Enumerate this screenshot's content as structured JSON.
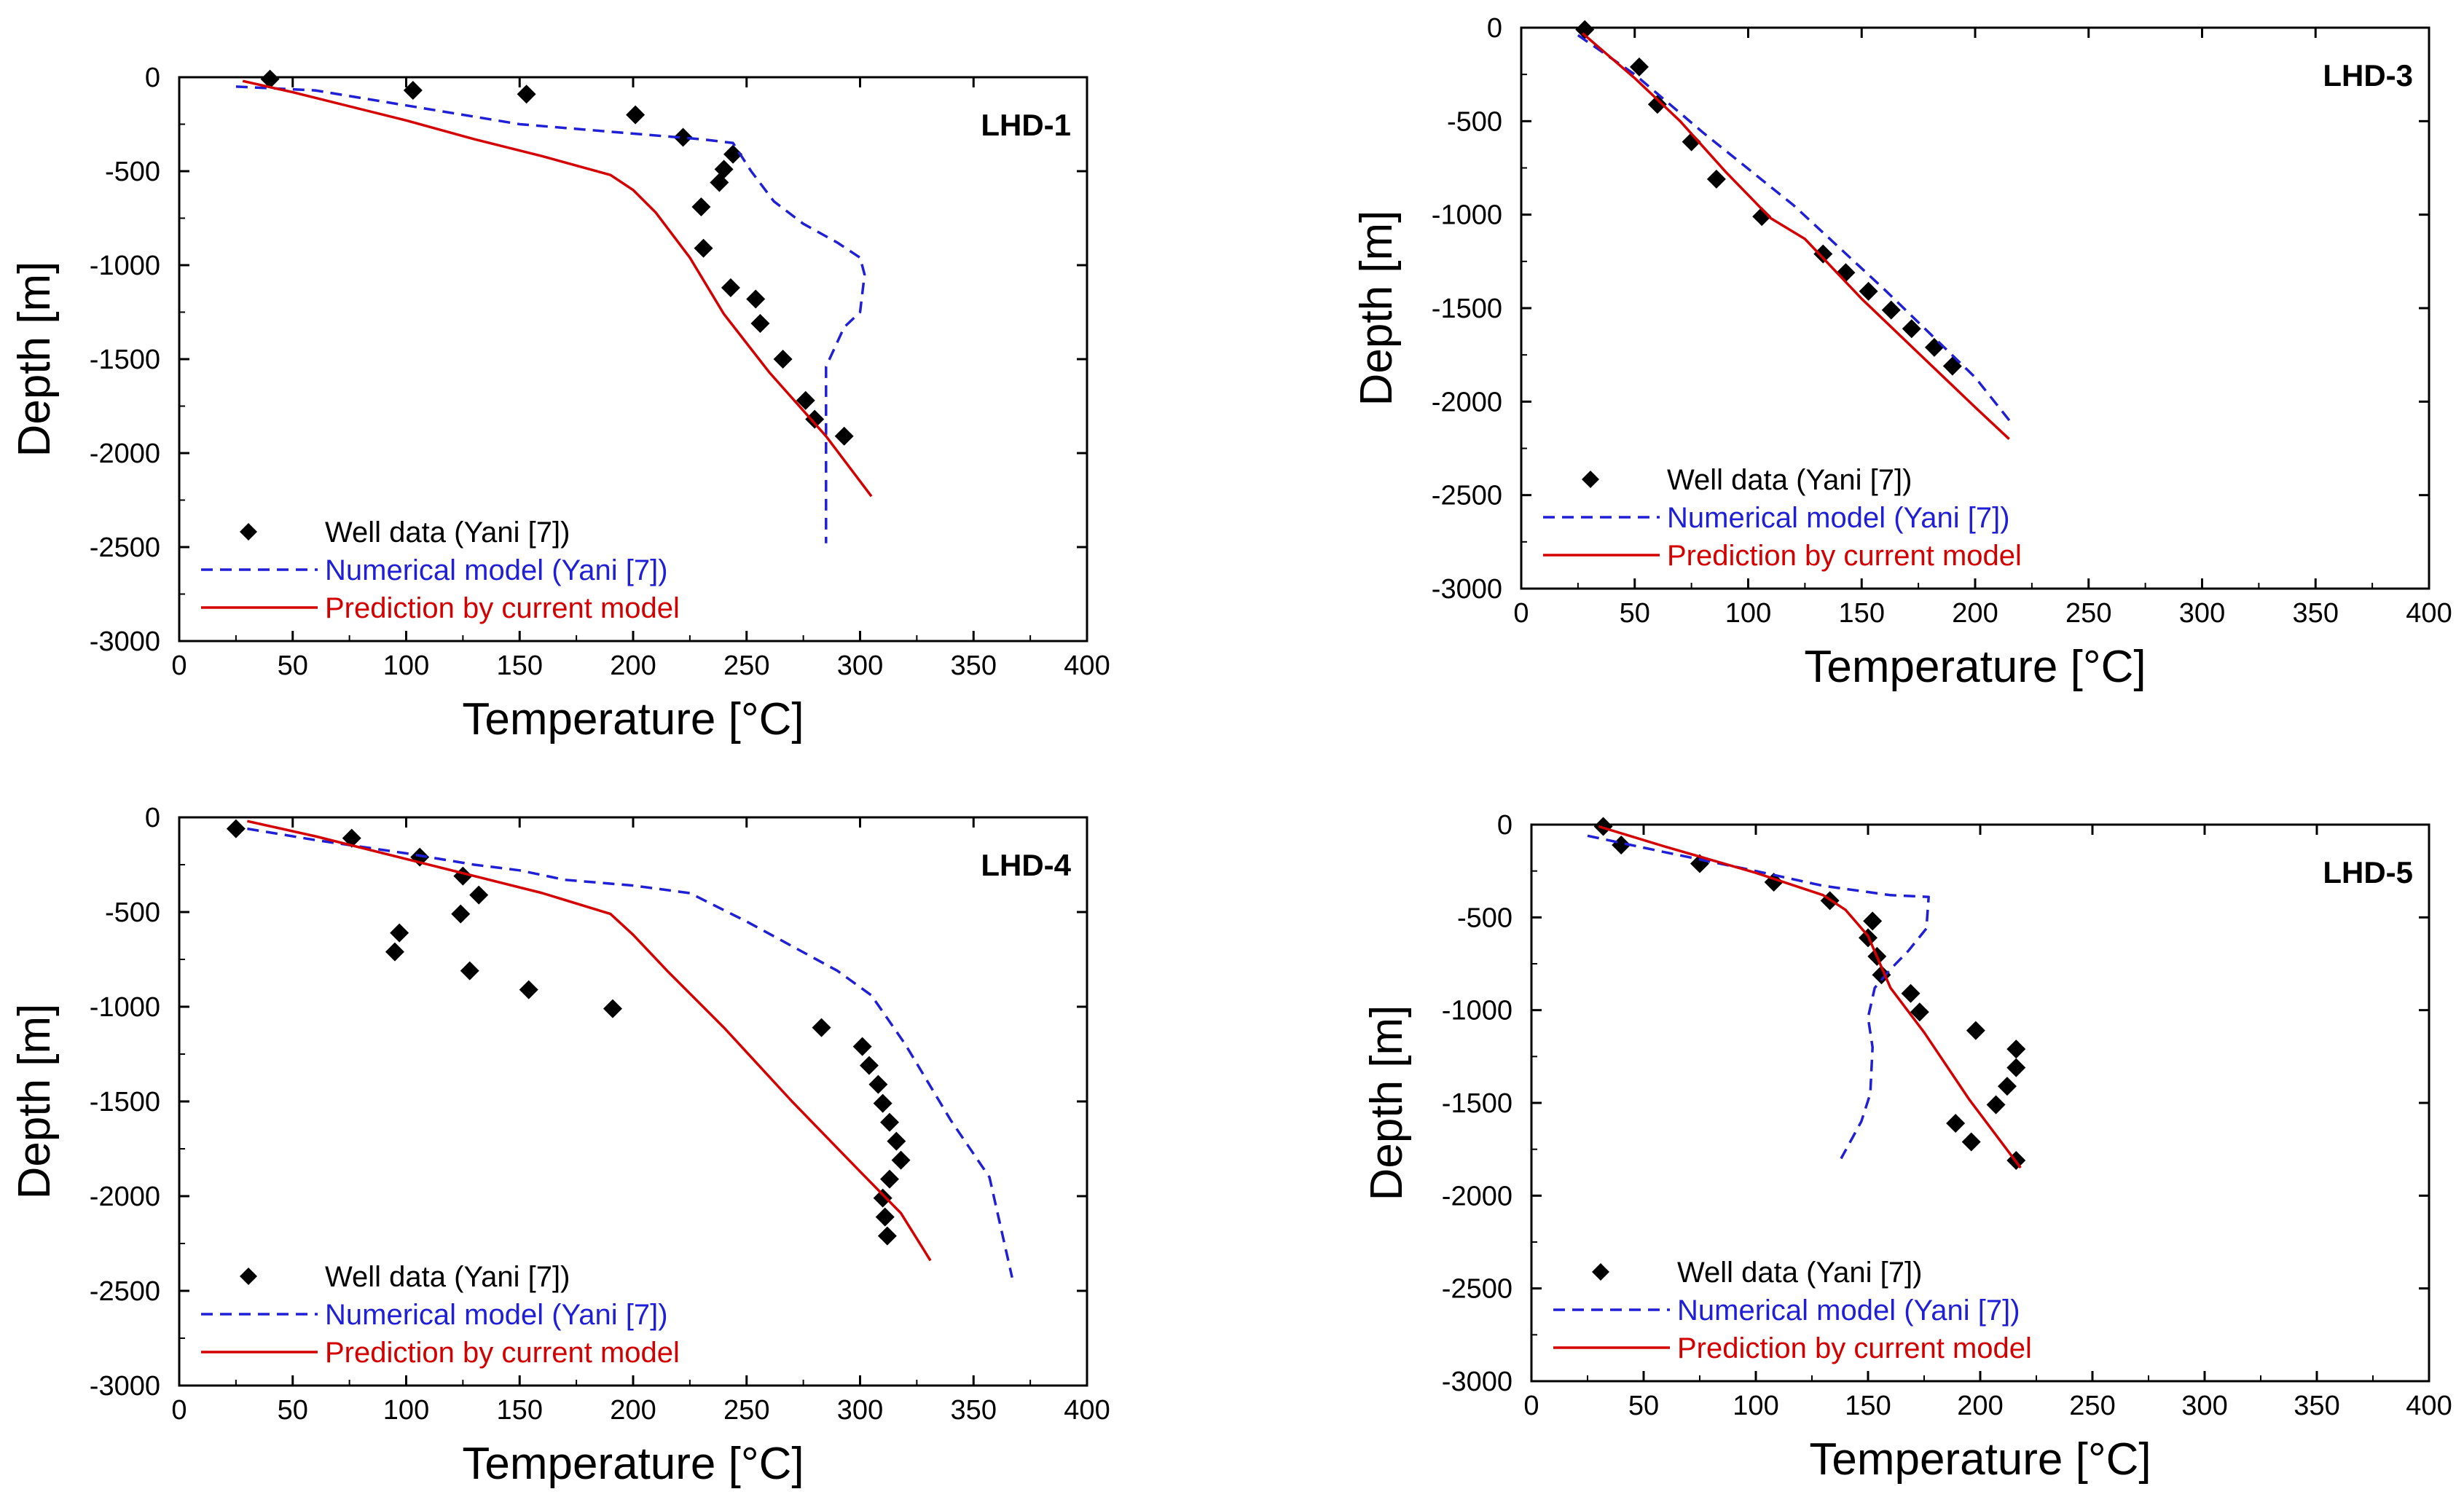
{
  "chart_data": [
    {
      "type": "scatter",
      "title": "LHD-1",
      "xlabel": "Temperature [°C]",
      "ylabel": "Depth [m]",
      "xlim": [
        0,
        400
      ],
      "ylim": [
        -3000,
        0
      ],
      "xticks": [
        "0",
        "50",
        "100",
        "150",
        "200",
        "250",
        "300",
        "350",
        "400"
      ],
      "yticks": [
        "0",
        "-500",
        "-1000",
        "-1500",
        "-2000",
        "-2500",
        "-3000"
      ],
      "legend_position": "bottom-left",
      "series": [
        {
          "name": "Well data (Yani [7])",
          "kind": "markers",
          "color": "#000000",
          "x": [
            40,
            103,
            153,
            201,
            222,
            244,
            240,
            238,
            230,
            231,
            243,
            254,
            256,
            266,
            276,
            280,
            293
          ],
          "y": [
            -10,
            -70,
            -90,
            -200,
            -320,
            -410,
            -490,
            -560,
            -690,
            -910,
            -1120,
            -1180,
            -1310,
            -1500,
            -1720,
            -1820,
            -1910
          ]
        },
        {
          "name": "Numerical model (Yani [7])",
          "kind": "dashed",
          "color": "#1f1fd6",
          "x": [
            25,
            60,
            100,
            150,
            200,
            230,
            244,
            252,
            262,
            275,
            290,
            300,
            302,
            300,
            293,
            285,
            285,
            285
          ],
          "y": [
            -50,
            -70,
            -150,
            -250,
            -300,
            -330,
            -350,
            -500,
            -660,
            -780,
            -880,
            -960,
            -1050,
            -1250,
            -1330,
            -1540,
            -2000,
            -2480
          ]
        },
        {
          "name": "Prediction by current model",
          "kind": "solid",
          "color": "#d40000",
          "x": [
            28,
            50,
            100,
            130,
            160,
            190,
            200,
            210,
            225,
            240,
            260,
            285,
            305
          ],
          "y": [
            -20,
            -80,
            -230,
            -330,
            -420,
            -520,
            -600,
            -720,
            -960,
            -1260,
            -1570,
            -1910,
            -2230
          ]
        }
      ]
    },
    {
      "type": "scatter",
      "title": "LHD-3",
      "xlabel": "Temperature [°C]",
      "ylabel": "Depth [m]",
      "xlim": [
        0,
        400
      ],
      "ylim": [
        -3000,
        0
      ],
      "xticks": [
        "0",
        "50",
        "100",
        "150",
        "200",
        "250",
        "300",
        "350",
        "400"
      ],
      "yticks": [
        "0",
        "-500",
        "-1000",
        "-1500",
        "-2000",
        "-2500",
        "-3000"
      ],
      "legend_position": "bottom-left",
      "series": [
        {
          "name": "Well data (Yani [7])",
          "kind": "markers",
          "color": "#000000",
          "x": [
            28,
            52,
            60,
            75,
            86,
            106,
            133,
            143,
            153,
            163,
            172,
            182,
            190
          ],
          "y": [
            -10,
            -210,
            -410,
            -610,
            -810,
            -1010,
            -1210,
            -1310,
            -1410,
            -1510,
            -1610,
            -1710,
            -1810
          ]
        },
        {
          "name": "Numerical model (Yani [7])",
          "kind": "dashed",
          "color": "#1f1fd6",
          "x": [
            25,
            50,
            80,
            120,
            160,
            200,
            217
          ],
          "y": [
            -40,
            -250,
            -560,
            -950,
            -1400,
            -1870,
            -2130
          ]
        },
        {
          "name": "Prediction by current model",
          "kind": "solid",
          "color": "#d40000",
          "x": [
            27,
            50,
            70,
            90,
            110,
            125,
            150,
            175,
            200,
            215
          ],
          "y": [
            -30,
            -270,
            -500,
            -770,
            -1020,
            -1130,
            -1450,
            -1740,
            -2030,
            -2200
          ]
        }
      ]
    },
    {
      "type": "scatter",
      "title": "LHD-4",
      "xlabel": "Temperature [°C]",
      "ylabel": "Depth [m]",
      "xlim": [
        0,
        400
      ],
      "ylim": [
        -3000,
        0
      ],
      "xticks": [
        "0",
        "50",
        "100",
        "150",
        "200",
        "250",
        "300",
        "350",
        "400"
      ],
      "yticks": [
        "0",
        "-500",
        "-1000",
        "-1500",
        "-2000",
        "-2500",
        "-3000"
      ],
      "legend_position": "bottom-left",
      "series": [
        {
          "name": "Well data (Yani [7])",
          "kind": "markers",
          "color": "#000000",
          "x": [
            25,
            76,
            106,
            125,
            132,
            124,
            97,
            95,
            128,
            154,
            191,
            283,
            301,
            304,
            308,
            310,
            313,
            316,
            318,
            313,
            310,
            311,
            312
          ],
          "y": [
            -60,
            -110,
            -210,
            -310,
            -410,
            -510,
            -610,
            -710,
            -810,
            -910,
            -1010,
            -1110,
            -1210,
            -1310,
            -1410,
            -1510,
            -1610,
            -1710,
            -1810,
            -1910,
            -2010,
            -2110,
            -2210
          ]
        },
        {
          "name": "Numerical model (Yani [7])",
          "kind": "dashed",
          "color": "#1f1fd6",
          "x": [
            30,
            60,
            100,
            130,
            150,
            170,
            200,
            225,
            250,
            270,
            290,
            305,
            320,
            340,
            357,
            367
          ],
          "y": [
            -60,
            -120,
            -190,
            -250,
            -280,
            -330,
            -360,
            -400,
            -550,
            -680,
            -810,
            -940,
            -1200,
            -1600,
            -1900,
            -2430
          ]
        },
        {
          "name": "Prediction by current model",
          "kind": "solid",
          "color": "#d40000",
          "x": [
            30,
            60,
            100,
            130,
            160,
            190,
            200,
            215,
            240,
            270,
            300,
            318,
            331
          ],
          "y": [
            -20,
            -100,
            -220,
            -310,
            -400,
            -510,
            -620,
            -810,
            -1110,
            -1500,
            -1870,
            -2090,
            -2340
          ]
        }
      ]
    },
    {
      "type": "scatter",
      "title": "LHD-5",
      "xlabel": "Temperature [°C]",
      "ylabel": "Depth [m]",
      "xlim": [
        0,
        400
      ],
      "ylim": [
        -3000,
        0
      ],
      "xticks": [
        "0",
        "50",
        "100",
        "150",
        "200",
        "250",
        "300",
        "350",
        "400"
      ],
      "yticks": [
        "0",
        "-500",
        "-1000",
        "-1500",
        "-2000",
        "-2500",
        "-3000"
      ],
      "legend_position": "bottom-left",
      "series": [
        {
          "name": "Well data (Yani [7])",
          "kind": "markers",
          "color": "#000000",
          "x": [
            32,
            40,
            75,
            108,
            133,
            152,
            150,
            154,
            156,
            169,
            173,
            198,
            216,
            216,
            212,
            207,
            189,
            196,
            216
          ],
          "y": [
            -10,
            -110,
            -210,
            -310,
            -410,
            -520,
            -610,
            -710,
            -810,
            -910,
            -1010,
            -1110,
            -1210,
            -1310,
            -1410,
            -1510,
            -1610,
            -1710,
            -1810
          ]
        },
        {
          "name": "Numerical model (Yani [7])",
          "kind": "dashed",
          "color": "#1f1fd6",
          "x": [
            25,
            60,
            100,
            130,
            160,
            177,
            176,
            168,
            160,
            153,
            150,
            152,
            151,
            147,
            138
          ],
          "y": [
            -60,
            -150,
            -250,
            -330,
            -380,
            -390,
            -560,
            -680,
            -780,
            -880,
            -1040,
            -1200,
            -1450,
            -1600,
            -1800
          ]
        },
        {
          "name": "Prediction by current model",
          "kind": "solid",
          "color": "#d40000",
          "x": [
            30,
            60,
            100,
            130,
            140,
            150,
            160,
            175,
            195,
            218
          ],
          "y": [
            -10,
            -120,
            -260,
            -380,
            -460,
            -600,
            -880,
            -1120,
            -1480,
            -1850
          ]
        }
      ]
    }
  ]
}
